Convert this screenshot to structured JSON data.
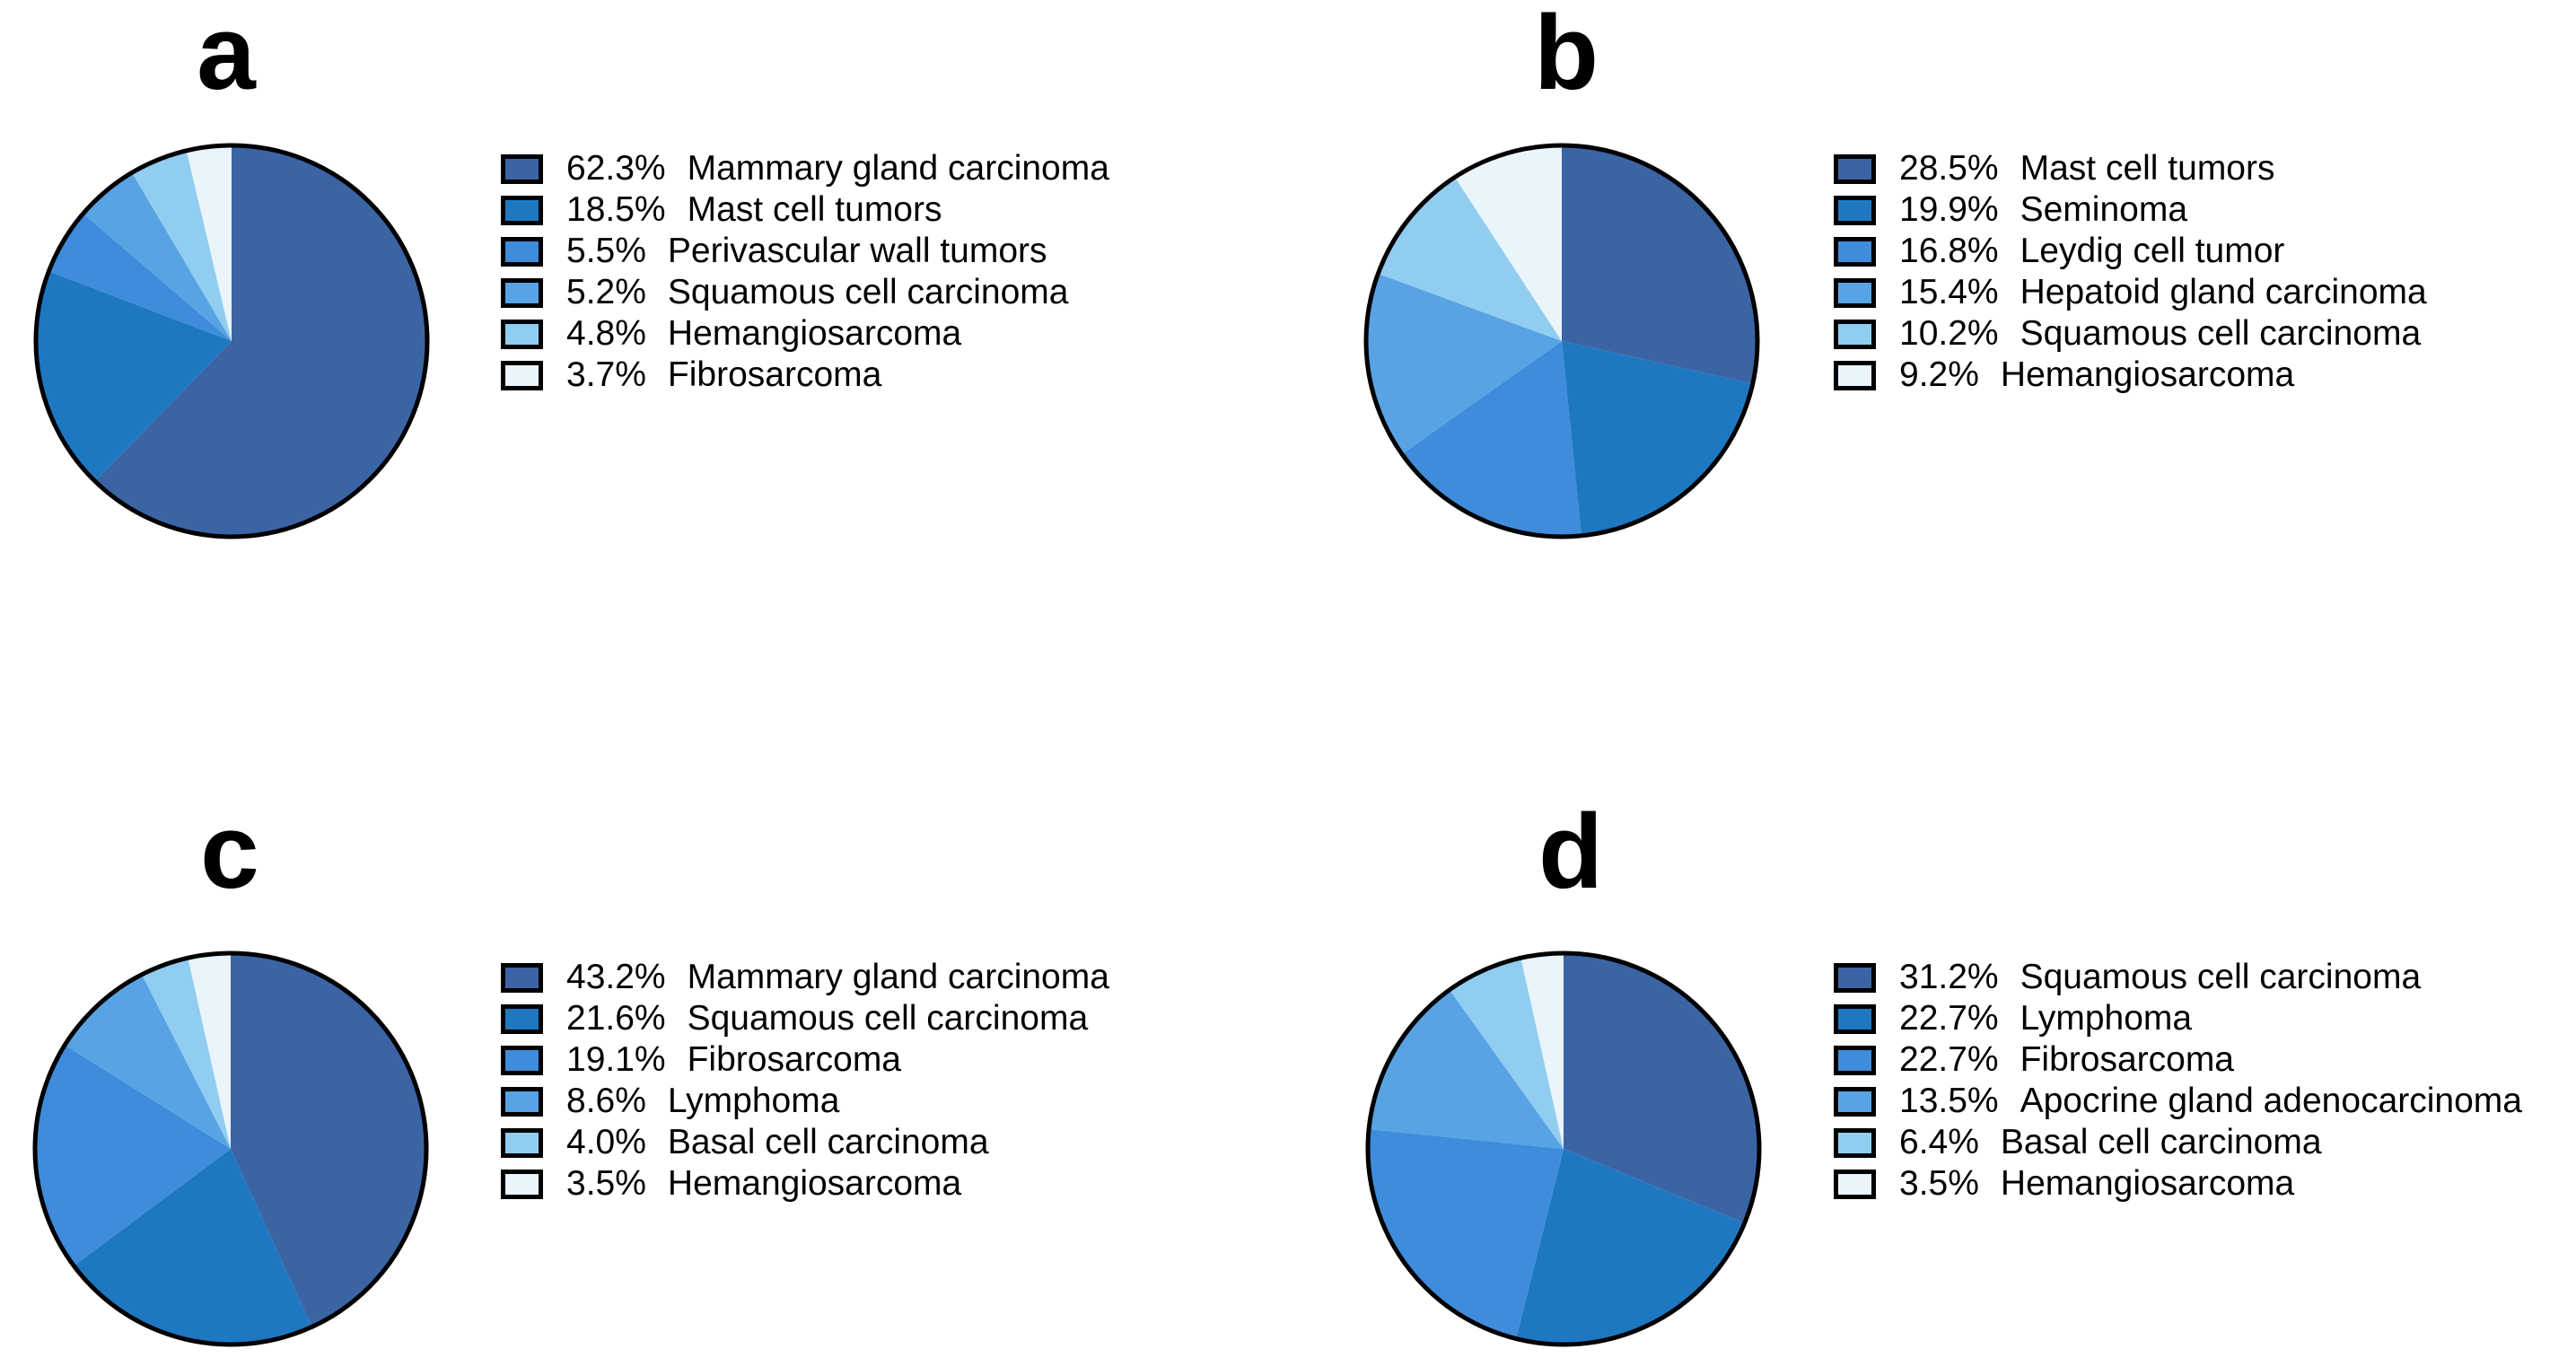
{
  "background": "#ffffff",
  "palette": [
    "#3B64A5",
    "#1E78C1",
    "#3E8CDB",
    "#57A3E3",
    "#90CDF1",
    "#E9F4FB"
  ],
  "pie_outline_color": "#000000",
  "text_color": "#000000",
  "chart_data": [
    {
      "type": "pie",
      "panel": "a",
      "start_angle_deg": 0,
      "direction": "clockwise",
      "legend_position": "right",
      "slices": [
        {
          "pct": "62.3%",
          "value": 62.3,
          "label": "Mammary gland carcinoma"
        },
        {
          "pct": "18.5%",
          "value": 18.5,
          "label": "Mast cell tumors"
        },
        {
          "pct": "5.5%",
          "value": 5.5,
          "label": "Perivascular wall tumors"
        },
        {
          "pct": "5.2%",
          "value": 5.2,
          "label": "Squamous cell carcinoma"
        },
        {
          "pct": "4.8%",
          "value": 4.8,
          "label": "Hemangiosarcoma"
        },
        {
          "pct": "3.7%",
          "value": 3.7,
          "label": "Fibrosarcoma"
        }
      ]
    },
    {
      "type": "pie",
      "panel": "b",
      "start_angle_deg": 0,
      "direction": "clockwise",
      "legend_position": "right",
      "slices": [
        {
          "pct": "28.5%",
          "value": 28.5,
          "label": "Mast cell tumors"
        },
        {
          "pct": "19.9%",
          "value": 19.9,
          "label": "Seminoma"
        },
        {
          "pct": "16.8%",
          "value": 16.8,
          "label": "Leydig cell tumor"
        },
        {
          "pct": "15.4%",
          "value": 15.4,
          "label": "Hepatoid gland carcinoma"
        },
        {
          "pct": "10.2%",
          "value": 10.2,
          "label": "Squamous cell carcinoma"
        },
        {
          "pct": "9.2%",
          "value": 9.2,
          "label": "Hemangiosarcoma"
        }
      ]
    },
    {
      "type": "pie",
      "panel": "c",
      "start_angle_deg": 0,
      "direction": "clockwise",
      "legend_position": "right",
      "slices": [
        {
          "pct": "43.2%",
          "value": 43.2,
          "label": "Mammary gland carcinoma"
        },
        {
          "pct": "21.6%",
          "value": 21.6,
          "label": "Squamous cell carcinoma"
        },
        {
          "pct": "19.1%",
          "value": 19.1,
          "label": "Fibrosarcoma"
        },
        {
          "pct": "8.6%",
          "value": 8.6,
          "label": "Lymphoma"
        },
        {
          "pct": "4.0%",
          "value": 4.0,
          "label": "Basal cell carcinoma"
        },
        {
          "pct": "3.5%",
          "value": 3.5,
          "label": "Hemangiosarcoma"
        }
      ]
    },
    {
      "type": "pie",
      "panel": "d",
      "start_angle_deg": 0,
      "direction": "clockwise",
      "legend_position": "right",
      "slices": [
        {
          "pct": "31.2%",
          "value": 31.2,
          "label": "Squamous cell carcinoma"
        },
        {
          "pct": "22.7%",
          "value": 22.7,
          "label": "Lymphoma"
        },
        {
          "pct": "22.7%",
          "value": 22.7,
          "label": "Fibrosarcoma"
        },
        {
          "pct": "13.5%",
          "value": 13.5,
          "label": "Apocrine gland adenocarcinoma"
        },
        {
          "pct": "6.4%",
          "value": 6.4,
          "label": "Basal cell carcinoma"
        },
        {
          "pct": "3.5%",
          "value": 3.5,
          "label": "Hemangiosarcoma"
        }
      ]
    }
  ]
}
